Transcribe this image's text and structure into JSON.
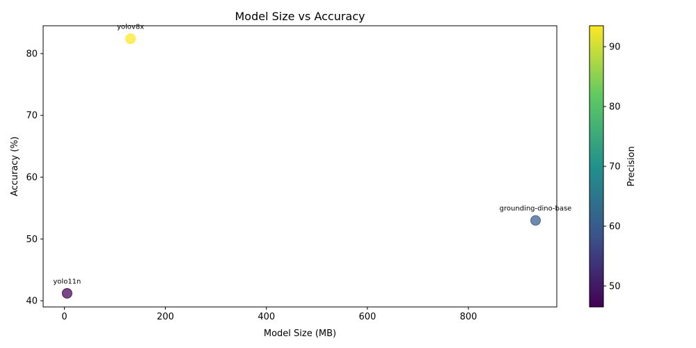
{
  "chart_data": {
    "type": "scatter",
    "title": "Model Size vs Accuracy",
    "xlabel": "Model Size (MB)",
    "ylabel": "Accuracy (%)",
    "xlim": [
      -42,
      975
    ],
    "ylim": [
      39,
      84.5
    ],
    "xticks": [
      0,
      200,
      400,
      600,
      800
    ],
    "yticks": [
      40,
      50,
      60,
      70,
      80
    ],
    "grid": false,
    "colorbar": {
      "label": "Precision",
      "range": [
        46.5,
        93.5
      ],
      "ticks": [
        50,
        60,
        70,
        80,
        90
      ],
      "colormap": "viridis"
    },
    "points": [
      {
        "label": "yolov8x",
        "x": 131,
        "y": 82.4,
        "precision": 93.5
      },
      {
        "label": "grounding-dino-base",
        "x": 933,
        "y": 53.0,
        "precision": 60.0
      },
      {
        "label": "yolo11n",
        "x": 5.4,
        "y": 41.2,
        "precision": 46.5
      }
    ]
  }
}
